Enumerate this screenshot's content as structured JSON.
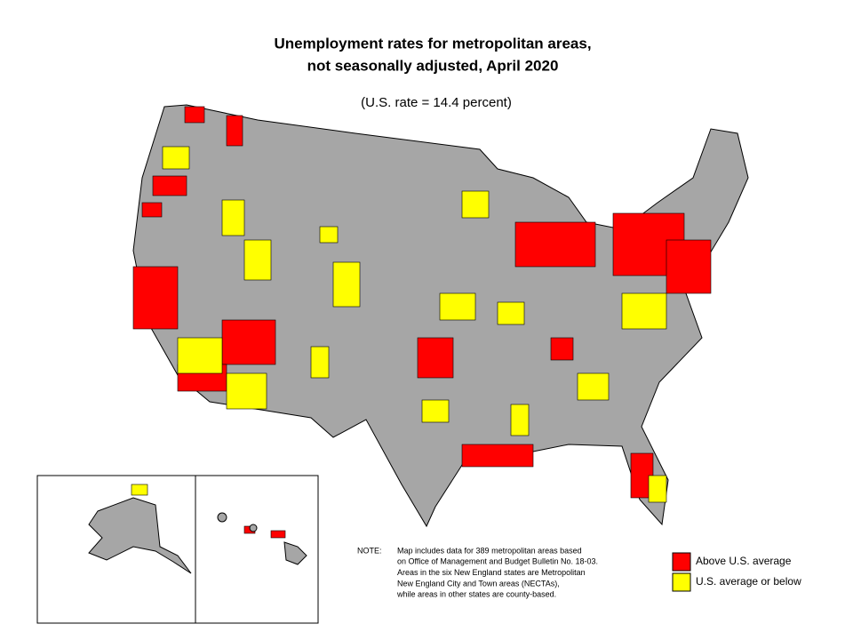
{
  "title": [
    "Unemployment rates for metropolitan areas,",
    "not seasonally adjusted, April 2020"
  ],
  "subtitle": "(U.S. rate = 14.4 percent)",
  "note": {
    "label": "NOTE:",
    "lines": [
      "Map includes data for 389 metropolitan areas based",
      "on Office of Management and Budget Bulletin No. 18-03.",
      "Areas in the six New England states are Metropolitan",
      "New England City and Town areas (NECTAs),",
      "while areas in other states are county-based."
    ]
  },
  "legend": [
    {
      "label": "Above U.S. average",
      "color": "#ff0000"
    },
    {
      "label": "U.S. average or below",
      "color": "#ffff00"
    }
  ]
}
